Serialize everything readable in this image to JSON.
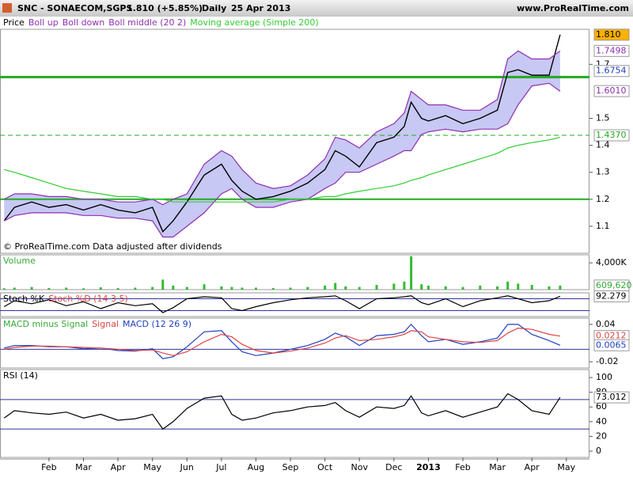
{
  "header": {
    "symbol": "SNC - SONAECOM,SGPS",
    "quote": "1.810 (+5.85%)",
    "period": "Daily",
    "date": "25 Apr 2013",
    "site": "www.ProRealTime.com"
  },
  "time_axis": {
    "xlim": [
      -0.42,
      16.67
    ],
    "xticks": [
      {
        "value": 1,
        "label": "Feb"
      },
      {
        "value": 2,
        "label": "Mar"
      },
      {
        "value": 3,
        "label": "Apr"
      },
      {
        "value": 4,
        "label": "May"
      },
      {
        "value": 5,
        "label": "Jun"
      },
      {
        "value": 6,
        "label": "Jul"
      },
      {
        "value": 7,
        "label": "Aug"
      },
      {
        "value": 8,
        "label": "Sep"
      },
      {
        "value": 9,
        "label": "Oct"
      },
      {
        "value": 10,
        "label": "Nov"
      },
      {
        "value": 11,
        "label": "Dec"
      },
      {
        "value": 12,
        "label": "2013",
        "bold": true
      },
      {
        "value": 13,
        "label": "Feb"
      },
      {
        "value": 14,
        "label": "Mar"
      },
      {
        "value": 15,
        "label": "Apr"
      },
      {
        "value": 16,
        "label": "May"
      }
    ],
    "x": [
      -0.3,
      0,
      0.5,
      1,
      1.5,
      2,
      2.5,
      3,
      3.5,
      4,
      4.3,
      4.6,
      5,
      5.5,
      6,
      6.3,
      6.6,
      7,
      7.5,
      8,
      8.5,
      9,
      9.3,
      9.6,
      10,
      10.5,
      11,
      11.3,
      11.5,
      11.8,
      12,
      12.5,
      13,
      13.5,
      14,
      14.3,
      14.6,
      15,
      15.5,
      15.82
    ]
  },
  "chart_data": [
    {
      "type": "band_line",
      "legend": [
        {
          "label": "Price",
          "color": "#000000"
        },
        {
          "label": "Boll up",
          "color": "#8e2fb0"
        },
        {
          "label": "Boll down",
          "color": "#8e2fb0"
        },
        {
          "label": "Boll middle (20 2)",
          "color": "#8e2fb0"
        },
        {
          "label": "Moving average (Simple 200)",
          "color": "#33cc33"
        }
      ],
      "note": "© ProRealTime.com Data adjusted after dividends",
      "ylim": [
        1.0,
        1.83
      ],
      "yticks": [
        1.1,
        1.2,
        1.3,
        1.4,
        1.5,
        1.7
      ],
      "band_color": "#c8c8f4",
      "series": [
        {
          "role": "price",
          "color": "#000000",
          "values": [
            1.12,
            1.17,
            1.19,
            1.17,
            1.18,
            1.16,
            1.18,
            1.16,
            1.15,
            1.17,
            1.08,
            1.12,
            1.19,
            1.29,
            1.33,
            1.27,
            1.23,
            1.2,
            1.21,
            1.23,
            1.26,
            1.31,
            1.38,
            1.36,
            1.32,
            1.41,
            1.43,
            1.47,
            1.56,
            1.5,
            1.49,
            1.51,
            1.48,
            1.5,
            1.53,
            1.67,
            1.68,
            1.66,
            1.66,
            1.81
          ]
        },
        {
          "role": "band_up",
          "color": "#8e2fb0",
          "values": [
            1.2,
            1.22,
            1.22,
            1.21,
            1.21,
            1.2,
            1.2,
            1.19,
            1.19,
            1.2,
            1.18,
            1.2,
            1.22,
            1.33,
            1.38,
            1.36,
            1.31,
            1.26,
            1.24,
            1.25,
            1.29,
            1.35,
            1.43,
            1.42,
            1.39,
            1.45,
            1.48,
            1.52,
            1.6,
            1.57,
            1.55,
            1.55,
            1.53,
            1.53,
            1.57,
            1.72,
            1.75,
            1.72,
            1.72,
            1.75
          ]
        },
        {
          "role": "band_down",
          "color": "#8e2fb0",
          "values": [
            1.12,
            1.14,
            1.15,
            1.15,
            1.15,
            1.14,
            1.14,
            1.13,
            1.13,
            1.12,
            1.06,
            1.06,
            1.1,
            1.15,
            1.22,
            1.24,
            1.2,
            1.17,
            1.17,
            1.19,
            1.2,
            1.24,
            1.26,
            1.3,
            1.3,
            1.33,
            1.36,
            1.38,
            1.38,
            1.44,
            1.45,
            1.46,
            1.45,
            1.46,
            1.46,
            1.48,
            1.55,
            1.62,
            1.63,
            1.6
          ]
        },
        {
          "role": "line",
          "color": "#33cc33",
          "values": [
            1.31,
            1.3,
            1.28,
            1.26,
            1.24,
            1.23,
            1.22,
            1.21,
            1.21,
            1.2,
            1.2,
            1.19,
            1.19,
            1.19,
            1.19,
            1.19,
            1.19,
            1.19,
            1.19,
            1.2,
            1.2,
            1.21,
            1.21,
            1.22,
            1.23,
            1.24,
            1.25,
            1.26,
            1.27,
            1.28,
            1.29,
            1.31,
            1.33,
            1.35,
            1.37,
            1.39,
            1.4,
            1.41,
            1.42,
            1.43
          ]
        }
      ],
      "levels": [
        {
          "value": 1.653,
          "color": "#22aa22",
          "width": 3
        },
        {
          "value": 1.2,
          "color": "#22aa22",
          "width": 2
        },
        {
          "value": 1.437,
          "color": "#22aa22",
          "width": 1,
          "dashed": true
        }
      ],
      "markers": [
        {
          "value": 1.81,
          "label": "1.810",
          "color": "#000000",
          "bg": "#ffb000"
        },
        {
          "value": 1.7498,
          "label": "1.7498",
          "color": "#8e2fb0",
          "bg": "#ffffff"
        },
        {
          "value": 1.6754,
          "label": "1.6754",
          "color": "#1f3fbf",
          "bg": "#ffffff"
        },
        {
          "value": 1.601,
          "label": "1.6010",
          "color": "#8e2fb0",
          "bg": "#ffffff"
        },
        {
          "value": 1.437,
          "label": "1.4370",
          "color": "#22aa22",
          "bg": "#ffffff"
        }
      ]
    },
    {
      "type": "bar",
      "legend": [
        {
          "label": "Volume",
          "color": "#33aa33"
        }
      ],
      "ylim": [
        0,
        5200000
      ],
      "yticks": [
        {
          "value": 4000000,
          "label": "4,000K"
        }
      ],
      "series": [
        {
          "role": "bar",
          "color": "#33bb33",
          "values": [
            200000,
            300000,
            400000,
            250000,
            300000,
            200000,
            350000,
            250000,
            300000,
            400000,
            1500000,
            600000,
            400000,
            800000,
            500000,
            400000,
            300000,
            300000,
            250000,
            300000,
            400000,
            600000,
            1000000,
            500000,
            400000,
            700000,
            900000,
            1200000,
            5000000,
            800000,
            600000,
            500000,
            400000,
            600000,
            500000,
            1200000,
            900000,
            700000,
            500000,
            609620
          ]
        }
      ],
      "markers": [
        {
          "value": 609620,
          "label": "609,620",
          "color": "#33aa33",
          "bg": "#ffffff"
        }
      ]
    },
    {
      "type": "line",
      "legend": [
        {
          "label": "Stoch %K",
          "color": "#000000"
        },
        {
          "label": "Stoch %D (14 3 5)",
          "color": "#dd4444"
        }
      ],
      "ylim": [
        -10,
        110
      ],
      "yticks": [],
      "series": [
        {
          "role": "line",
          "color": "#000000",
          "values": [
            40,
            70,
            55,
            75,
            45,
            65,
            30,
            60,
            45,
            55,
            10,
            35,
            80,
            90,
            85,
            30,
            20,
            40,
            60,
            75,
            85,
            90,
            95,
            70,
            30,
            80,
            85,
            90,
            95,
            60,
            50,
            80,
            40,
            70,
            85,
            95,
            80,
            60,
            70,
            92.279
          ]
        }
      ],
      "levels": [
        {
          "value": 80,
          "color": "#333399",
          "width": 1
        },
        {
          "value": 20,
          "color": "#333399",
          "width": 1
        }
      ],
      "markers": [
        {
          "value": 92.279,
          "label": "92.279",
          "color": "#000000",
          "bg": "#ffffff"
        }
      ]
    },
    {
      "type": "line",
      "legend": [
        {
          "label": "MACD minus Signal",
          "color": "#33aa33"
        },
        {
          "label": "Signal",
          "color": "#dd4444"
        },
        {
          "label": "MACD (12 26 9)",
          "color": "#1f3fbf"
        }
      ],
      "ylim": [
        -0.03,
        0.05
      ],
      "yticks": [
        0.04,
        -0.02
      ],
      "series": [
        {
          "role": "line",
          "color": "#1f3fbf",
          "values": [
            0.002,
            0.006,
            0.006,
            0.004,
            0.004,
            0.001,
            0.002,
            -0.002,
            -0.003,
            0.001,
            -0.015,
            -0.012,
            0.004,
            0.028,
            0.03,
            0.012,
            -0.004,
            -0.01,
            -0.006,
            0,
            0.006,
            0.016,
            0.026,
            0.02,
            0.006,
            0.022,
            0.024,
            0.028,
            0.04,
            0.022,
            0.012,
            0.016,
            0.008,
            0.012,
            0.018,
            0.04,
            0.04,
            0.024,
            0.014,
            0.0065
          ]
        },
        {
          "role": "line",
          "color": "#dd4444",
          "values": [
            0,
            0.003,
            0.005,
            0.005,
            0.004,
            0.003,
            0.002,
            0,
            -0.002,
            -0.001,
            -0.006,
            -0.01,
            -0.004,
            0.012,
            0.024,
            0.02,
            0.008,
            -0.002,
            -0.006,
            -0.003,
            0.002,
            0.01,
            0.018,
            0.022,
            0.014,
            0.016,
            0.02,
            0.024,
            0.03,
            0.028,
            0.02,
            0.016,
            0.012,
            0.011,
            0.014,
            0.026,
            0.034,
            0.032,
            0.024,
            0.0212
          ]
        }
      ],
      "levels": [
        {
          "value": 0,
          "color": "#333399",
          "width": 1
        }
      ],
      "markers": [
        {
          "value": 0.0212,
          "label": "0.0212",
          "color": "#dd4444",
          "bg": "#ffffff"
        },
        {
          "value": 0.0065,
          "label": "0.0065",
          "color": "#1f3fbf",
          "bg": "#ffffff"
        }
      ]
    },
    {
      "type": "line",
      "legend": [
        {
          "label": "RSI (14)",
          "color": "#000000"
        }
      ],
      "ylim": [
        -8.6,
        110.8
      ],
      "yticks": [
        100,
        80,
        60,
        40,
        20,
        0
      ],
      "series": [
        {
          "role": "line",
          "color": "#000000",
          "values": [
            45,
            55,
            52,
            50,
            53,
            45,
            50,
            42,
            44,
            50,
            30,
            40,
            58,
            72,
            75,
            50,
            42,
            45,
            52,
            55,
            60,
            62,
            66,
            55,
            46,
            60,
            58,
            62,
            75,
            52,
            48,
            55,
            46,
            53,
            60,
            78,
            70,
            55,
            50,
            73.012
          ]
        }
      ],
      "levels": [
        {
          "value": 70,
          "color": "#333399",
          "width": 1
        },
        {
          "value": 30,
          "color": "#333399",
          "width": 1
        }
      ],
      "markers": [
        {
          "value": 73.012,
          "label": "73.012",
          "color": "#000000",
          "bg": "#ffffff"
        }
      ]
    }
  ]
}
